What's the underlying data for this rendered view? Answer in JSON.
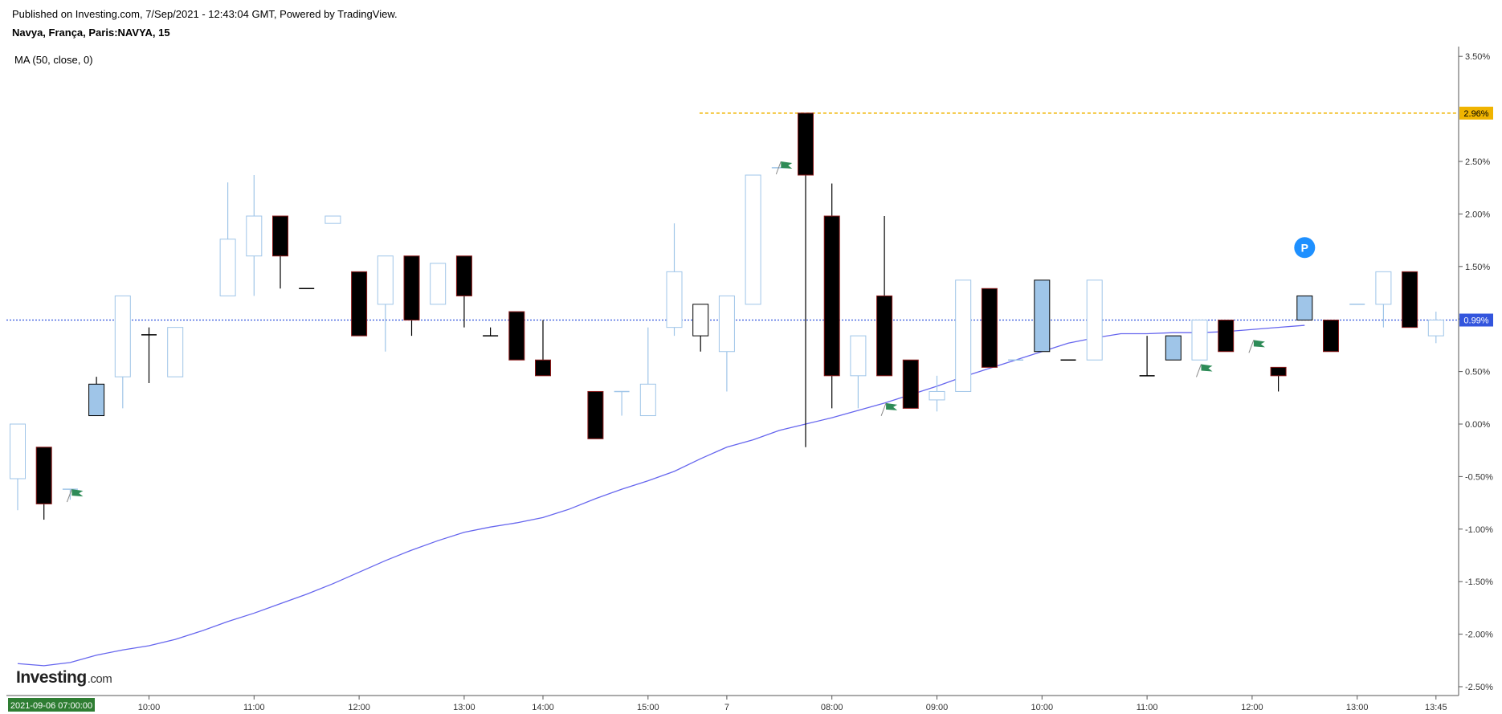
{
  "header": {
    "published": "Published on Investing.com, 7/Sep/2021 - 12:43:04 GMT, Powered by TradingView.",
    "symbol": "Navya, França, Paris:NAVYA, 15",
    "indicator": "MA (50, close, 0)"
  },
  "logo": {
    "main": "Investing",
    "suffix": ".com"
  },
  "colors": {
    "up_body_fill": "#9fc5e8",
    "up_outline": "#9fc5e8",
    "down_body_fill": "#000000",
    "down_outline": "#8b1a1a",
    "ma_line": "#6666ee",
    "last_price_line": "#3355dd",
    "high_line": "#f0b400",
    "date_badge": "#2e7d32",
    "flag": "#2e8b57",
    "p_marker": "#1e90ff"
  },
  "chart_data": {
    "type": "candlestick",
    "title": "Navya, França, Paris:NAVYA, 15",
    "y_unit": "%",
    "ylim": [
      -2.55,
      3.55
    ],
    "y_ticks": [
      "3.50%",
      "2.50%",
      "2.00%",
      "1.50%",
      "1.00%",
      "0.50%",
      "0.00%",
      "-0.50%",
      "-1.00%",
      "-1.50%",
      "-2.00%",
      "-2.50%"
    ],
    "x_ticks": [
      {
        "label": "10:00",
        "i": 5
      },
      {
        "label": "11:00",
        "i": 9
      },
      {
        "label": "12:00",
        "i": 13
      },
      {
        "label": "13:00",
        "i": 17
      },
      {
        "label": "14:00",
        "i": 20
      },
      {
        "label": "15:00",
        "i": 24
      },
      {
        "label": "7",
        "i": 27
      },
      {
        "label": "08:00",
        "i": 31
      },
      {
        "label": "09:00",
        "i": 35
      },
      {
        "label": "10:00",
        "i": 39
      },
      {
        "label": "11:00",
        "i": 43
      },
      {
        "label": "12:00",
        "i": 47
      },
      {
        "label": "13:00",
        "i": 51
      },
      {
        "label": "13:45",
        "i": 54
      }
    ],
    "date_badge": "2021-09-06 07:00:00",
    "last_price": {
      "value": 0.99,
      "label": "0.99%"
    },
    "high_line": {
      "value": 2.96,
      "label": "2.96%"
    },
    "candles": [
      {
        "o": -0.52,
        "h": 0.0,
        "l": -0.82,
        "c": 0.0,
        "t": "hollow"
      },
      {
        "o": -0.22,
        "h": -0.22,
        "l": -0.91,
        "c": -0.76,
        "t": "down"
      },
      {
        "o": -0.62,
        "h": -0.62,
        "l": -0.72,
        "c": -0.62,
        "t": "dash"
      },
      {
        "o": 0.08,
        "h": 0.45,
        "l": 0.08,
        "c": 0.38,
        "t": "filled"
      },
      {
        "o": 0.45,
        "h": 1.22,
        "l": 0.15,
        "c": 1.22,
        "t": "hollow"
      },
      {
        "o": 0.85,
        "h": 0.92,
        "l": 0.39,
        "c": 0.85,
        "t": "doji"
      },
      {
        "o": 0.45,
        "h": 0.92,
        "l": 0.45,
        "c": 0.92,
        "t": "hollow"
      },
      null,
      {
        "o": 1.22,
        "h": 2.3,
        "l": 1.22,
        "c": 1.76,
        "t": "hollow"
      },
      {
        "o": 1.6,
        "h": 2.37,
        "l": 1.22,
        "c": 1.98,
        "t": "hollow"
      },
      {
        "o": 1.98,
        "h": 1.98,
        "l": 1.29,
        "c": 1.6,
        "t": "down"
      },
      {
        "o": 1.29,
        "h": 1.29,
        "l": 1.29,
        "c": 1.29,
        "t": "doji"
      },
      {
        "o": 1.91,
        "h": 1.98,
        "l": 1.91,
        "c": 1.98,
        "t": "hollow"
      },
      {
        "o": 1.45,
        "h": 1.45,
        "l": 0.84,
        "c": 0.84,
        "t": "down"
      },
      {
        "o": 1.14,
        "h": 1.6,
        "l": 0.69,
        "c": 1.6,
        "t": "hollow"
      },
      {
        "o": 1.6,
        "h": 1.6,
        "l": 0.84,
        "c": 0.99,
        "t": "down"
      },
      {
        "o": 1.14,
        "h": 1.53,
        "l": 1.14,
        "c": 1.53,
        "t": "hollow"
      },
      {
        "o": 1.6,
        "h": 1.6,
        "l": 0.92,
        "c": 1.22,
        "t": "down"
      },
      {
        "o": 0.84,
        "h": 0.92,
        "l": 0.84,
        "c": 0.84,
        "t": "doji"
      },
      {
        "o": 1.07,
        "h": 1.07,
        "l": 0.61,
        "c": 0.61,
        "t": "down"
      },
      {
        "o": 0.61,
        "h": 0.99,
        "l": 0.46,
        "c": 0.46,
        "t": "down"
      },
      null,
      {
        "o": 0.31,
        "h": 0.31,
        "l": -0.14,
        "c": -0.14,
        "t": "down"
      },
      {
        "o": 0.31,
        "h": 0.31,
        "l": 0.08,
        "c": 0.31,
        "t": "dash"
      },
      {
        "o": 0.08,
        "h": 0.92,
        "l": 0.08,
        "c": 0.38,
        "t": "hollow"
      },
      {
        "o": 0.92,
        "h": 1.91,
        "l": 0.84,
        "c": 1.45,
        "t": "hollow"
      },
      {
        "o": 0.84,
        "h": 1.14,
        "l": 0.69,
        "c": 1.14,
        "t": "hollow_black"
      },
      {
        "o": 0.69,
        "h": 1.22,
        "l": 0.31,
        "c": 1.22,
        "t": "hollow"
      },
      {
        "o": 1.14,
        "h": 2.37,
        "l": 1.14,
        "c": 2.37,
        "t": "hollow"
      },
      {
        "o": 2.44,
        "h": 2.44,
        "l": 2.44,
        "c": 2.44,
        "t": "dash"
      },
      {
        "o": 2.96,
        "h": 2.96,
        "l": -0.22,
        "c": 2.37,
        "t": "down"
      },
      {
        "o": 1.98,
        "h": 2.29,
        "l": 0.15,
        "c": 0.46,
        "t": "down"
      },
      {
        "o": 0.46,
        "h": 0.84,
        "l": 0.15,
        "c": 0.84,
        "t": "hollow"
      },
      {
        "o": 1.22,
        "h": 1.98,
        "l": 0.46,
        "c": 0.46,
        "t": "down"
      },
      {
        "o": 0.61,
        "h": 0.61,
        "l": 0.15,
        "c": 0.15,
        "t": "down"
      },
      {
        "o": 0.23,
        "h": 0.46,
        "l": 0.12,
        "c": 0.31,
        "t": "hollow"
      },
      {
        "o": 0.31,
        "h": 1.37,
        "l": 0.31,
        "c": 1.37,
        "t": "hollow"
      },
      {
        "o": 1.29,
        "h": 1.29,
        "l": 0.54,
        "c": 0.54,
        "t": "down"
      },
      {
        "o": 0.61,
        "h": 0.61,
        "l": 0.61,
        "c": 0.61,
        "t": "dash"
      },
      {
        "o": 0.69,
        "h": 1.37,
        "l": 0.69,
        "c": 1.37,
        "t": "filled"
      },
      {
        "o": 0.61,
        "h": 0.61,
        "l": 0.61,
        "c": 0.61,
        "t": "doji"
      },
      {
        "o": 0.61,
        "h": 1.37,
        "l": 0.61,
        "c": 1.37,
        "t": "hollow"
      },
      null,
      {
        "o": 0.46,
        "h": 0.84,
        "l": 0.46,
        "c": 0.46,
        "t": "doji"
      },
      {
        "o": 0.61,
        "h": 0.84,
        "l": 0.61,
        "c": 0.84,
        "t": "filled"
      },
      {
        "o": 0.61,
        "h": 0.99,
        "l": 0.61,
        "c": 0.99,
        "t": "hollow"
      },
      {
        "o": 0.99,
        "h": 0.99,
        "l": 0.69,
        "c": 0.69,
        "t": "down"
      },
      null,
      {
        "o": 0.54,
        "h": 0.54,
        "l": 0.31,
        "c": 0.46,
        "t": "down"
      },
      {
        "o": 0.99,
        "h": 1.22,
        "l": 0.99,
        "c": 1.22,
        "t": "filled"
      },
      {
        "o": 0.99,
        "h": 0.99,
        "l": 0.69,
        "c": 0.69,
        "t": "down"
      },
      {
        "o": 1.14,
        "h": 1.14,
        "l": 1.14,
        "c": 1.14,
        "t": "dash"
      },
      {
        "o": 1.14,
        "h": 1.45,
        "l": 0.92,
        "c": 1.45,
        "t": "hollow"
      },
      {
        "o": 1.45,
        "h": 1.45,
        "l": 0.92,
        "c": 0.92,
        "t": "down"
      },
      {
        "o": 0.84,
        "h": 1.07,
        "l": 0.77,
        "c": 0.99,
        "t": "hollow"
      }
    ],
    "ma_series": [
      {
        "i": 0,
        "v": -2.28
      },
      {
        "i": 1,
        "v": -2.3
      },
      {
        "i": 2,
        "v": -2.27
      },
      {
        "i": 3,
        "v": -2.2
      },
      {
        "i": 4,
        "v": -2.15
      },
      {
        "i": 5,
        "v": -2.11
      },
      {
        "i": 6,
        "v": -2.05
      },
      {
        "i": 7,
        "v": -1.97
      },
      {
        "i": 8,
        "v": -1.88
      },
      {
        "i": 9,
        "v": -1.8
      },
      {
        "i": 10,
        "v": -1.71
      },
      {
        "i": 11,
        "v": -1.62
      },
      {
        "i": 12,
        "v": -1.52
      },
      {
        "i": 13,
        "v": -1.41
      },
      {
        "i": 14,
        "v": -1.3
      },
      {
        "i": 15,
        "v": -1.2
      },
      {
        "i": 16,
        "v": -1.11
      },
      {
        "i": 17,
        "v": -1.03
      },
      {
        "i": 18,
        "v": -0.98
      },
      {
        "i": 19,
        "v": -0.94
      },
      {
        "i": 20,
        "v": -0.89
      },
      {
        "i": 21,
        "v": -0.81
      },
      {
        "i": 22,
        "v": -0.71
      },
      {
        "i": 23,
        "v": -0.62
      },
      {
        "i": 24,
        "v": -0.54
      },
      {
        "i": 25,
        "v": -0.45
      },
      {
        "i": 26,
        "v": -0.33
      },
      {
        "i": 27,
        "v": -0.22
      },
      {
        "i": 28,
        "v": -0.15
      },
      {
        "i": 29,
        "v": -0.06
      },
      {
        "i": 30,
        "v": 0.0
      },
      {
        "i": 31,
        "v": 0.06
      },
      {
        "i": 32,
        "v": 0.13
      },
      {
        "i": 33,
        "v": 0.2
      },
      {
        "i": 34,
        "v": 0.28
      },
      {
        "i": 35,
        "v": 0.36
      },
      {
        "i": 36,
        "v": 0.45
      },
      {
        "i": 37,
        "v": 0.53
      },
      {
        "i": 38,
        "v": 0.61
      },
      {
        "i": 39,
        "v": 0.69
      },
      {
        "i": 40,
        "v": 0.77
      },
      {
        "i": 41,
        "v": 0.82
      },
      {
        "i": 42,
        "v": 0.86
      },
      {
        "i": 43,
        "v": 0.86
      },
      {
        "i": 44,
        "v": 0.87
      },
      {
        "i": 45,
        "v": 0.87
      },
      {
        "i": 46,
        "v": 0.88
      },
      {
        "i": 47,
        "v": 0.9
      },
      {
        "i": 48,
        "v": 0.92
      },
      {
        "i": 49,
        "v": 0.94
      }
    ],
    "flags": [
      {
        "i": 2,
        "v": -0.62
      },
      {
        "i": 29,
        "v": 2.5
      },
      {
        "i": 33,
        "v": 0.2
      },
      {
        "i": 45,
        "v": 0.57
      },
      {
        "i": 47,
        "v": 0.8
      }
    ],
    "p_marker": {
      "i": 49,
      "v": 1.68,
      "label": "P"
    }
  }
}
